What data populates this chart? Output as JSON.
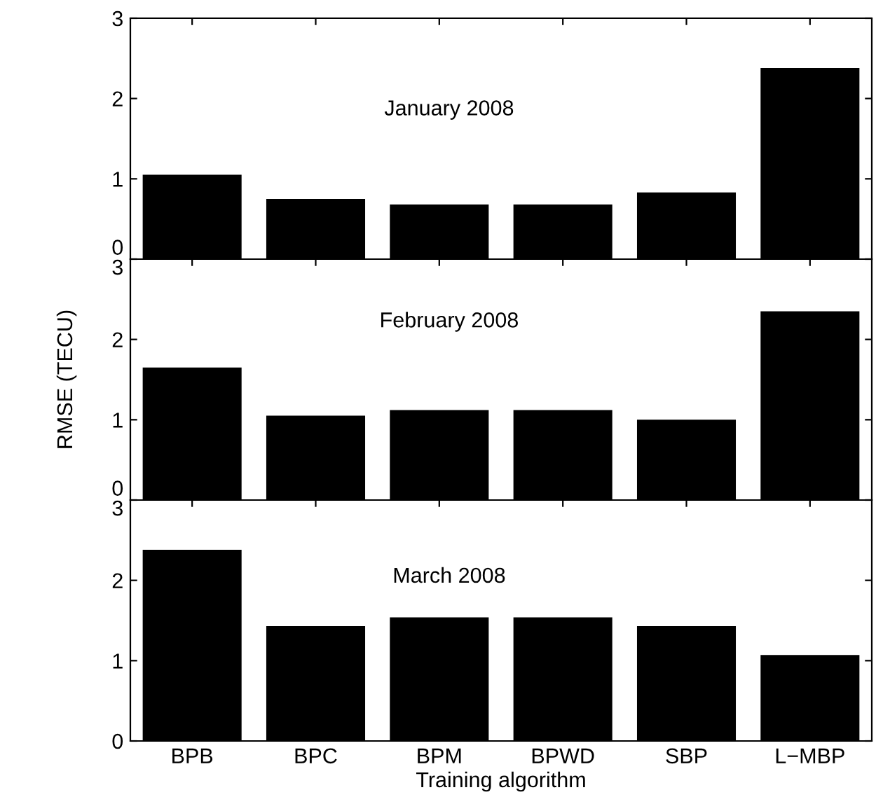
{
  "chart_data": [
    {
      "type": "bar",
      "categories": [
        null,
        null,
        null,
        null,
        null,
        null
      ],
      "values": [
        1.05,
        0.75,
        0.68,
        0.68,
        0.83,
        2.38
      ],
      "color": "#000000",
      "ylim": [
        0,
        3
      ],
      "yticks": [
        0,
        1,
        2,
        3
      ],
      "annotations": [
        "January 2008"
      ],
      "tick_labels": "y",
      "grid": false,
      "legend": false
    },
    {
      "type": "bar",
      "categories": [
        null,
        null,
        null,
        null,
        null,
        null
      ],
      "values": [
        1.65,
        1.05,
        1.12,
        1.12,
        1.0,
        2.35
      ],
      "color": "#000000",
      "ylim": [
        0,
        3
      ],
      "yticks": [
        0,
        1,
        2,
        3
      ],
      "ylabel": "RMSE (TECU)",
      "annotations": [
        "February 2008"
      ],
      "tick_labels": "y",
      "grid": false,
      "legend": false
    },
    {
      "type": "bar",
      "categories": [
        "BPB",
        "BPC",
        "BPM",
        "BPWD",
        "SBP",
        "L−MBP"
      ],
      "values": [
        2.38,
        1.43,
        1.54,
        1.54,
        1.43,
        1.07
      ],
      "color": "#000000",
      "ylim": [
        0,
        3
      ],
      "yticks": [
        0,
        1,
        2,
        3
      ],
      "xlabel": "Training algorithm",
      "annotations": [
        "March 2008"
      ],
      "grid": false,
      "legend": false
    }
  ]
}
